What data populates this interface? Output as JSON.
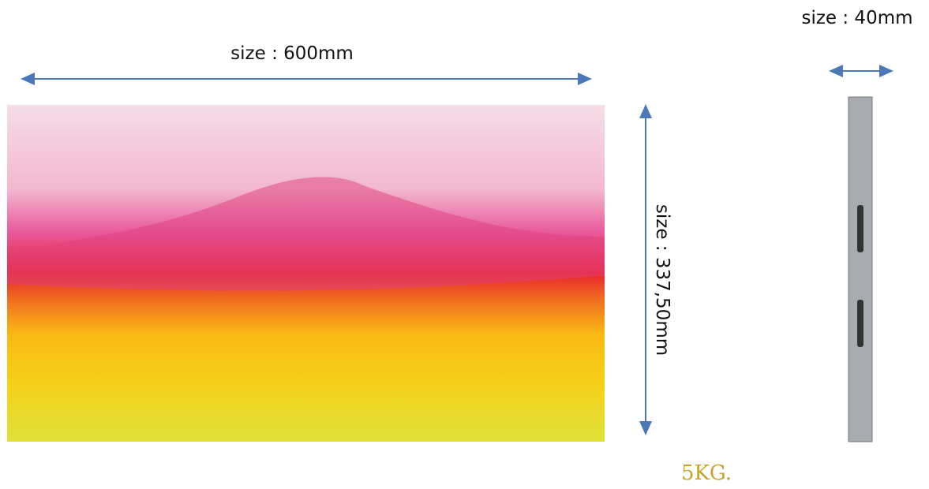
{
  "width_label": "size : 600mm",
  "height_label": "size : 337,50mm",
  "depth_label": "size : 40mm",
  "weight_label": "5KG."
}
